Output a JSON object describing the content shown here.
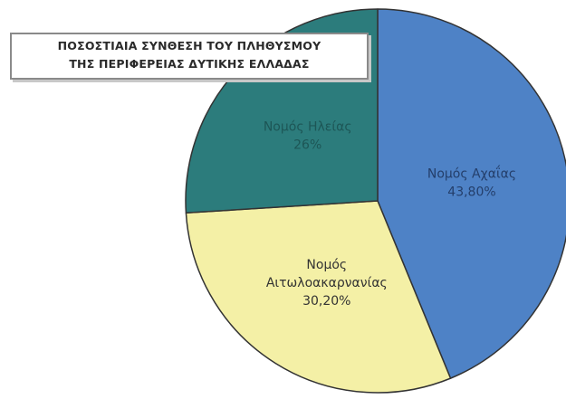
{
  "chart_data": {
    "type": "pie",
    "title_lines": [
      "ΠΟΣΟΣΤΙΑΙΑ ΣΥΝΘΕΣΗ ΤΟΥ ΠΛΗΘΥΣΜΟΥ",
      "ΤΗΣ ΠΕΡΙΦΕΡΕΙΑΣ ΔΥΤΙΚΗΣ ΕΛΛΑΔΑΣ"
    ],
    "slices": [
      {
        "label_lines": [
          "Νομός Αχαΐας"
        ],
        "percent_text": "43,80%",
        "value": 43.8,
        "color": "#4e82c6",
        "text_color": "#243f6b"
      },
      {
        "label_lines": [
          "Νομός",
          "Αιτωλοακαρνανίας"
        ],
        "percent_text": "30,20%",
        "value": 30.2,
        "color": "#f4f0a6",
        "text_color": "#333333"
      },
      {
        "label_lines": [
          "Νομός Ηλείας"
        ],
        "percent_text": "26%",
        "value": 26,
        "color": "#2c7c7c",
        "text_color": "#1d5656"
      }
    ],
    "start_angle_deg": 0,
    "direction": "clockwise",
    "edge_color": "#333333"
  }
}
